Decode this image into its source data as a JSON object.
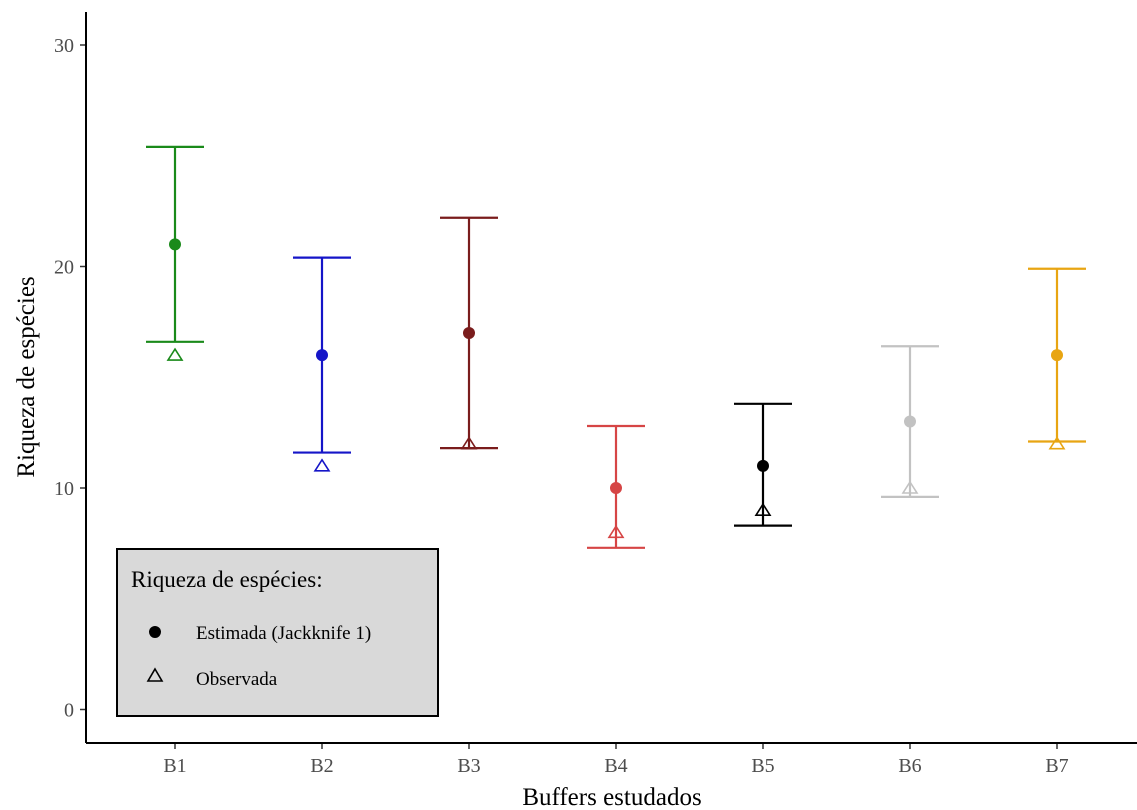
{
  "chart_data": {
    "type": "errorbar",
    "xlabel": "Buffers estudados",
    "ylabel": "Riqueza de espécies",
    "ylim": [
      -1.5,
      31.5
    ],
    "yticks": [
      0,
      10,
      20,
      30
    ],
    "categories": [
      "B1",
      "B2",
      "B3",
      "B4",
      "B5",
      "B6",
      "B7"
    ],
    "colors": [
      "#1a8a1a",
      "#1515c8",
      "#7a1c1c",
      "#d64545",
      "#000000",
      "#c2c2c2",
      "#e8a512"
    ],
    "estimated": [
      21,
      16,
      17,
      10,
      11,
      13,
      16
    ],
    "lower": [
      16.6,
      11.6,
      11.8,
      7.3,
      8.3,
      9.6,
      12.1
    ],
    "upper": [
      25.4,
      20.4,
      22.2,
      12.8,
      13.8,
      16.4,
      19.9
    ],
    "observed": [
      16,
      11,
      12,
      8,
      9,
      10,
      12
    ],
    "grid": false,
    "legend": {
      "title": "Riqueza de espécies:",
      "placement": "bottom-left",
      "entries": [
        {
          "label": "Estimada (Jackknife 1)",
          "marker": "filled-circle"
        },
        {
          "label": "Observada",
          "marker": "open-triangle"
        }
      ]
    }
  }
}
